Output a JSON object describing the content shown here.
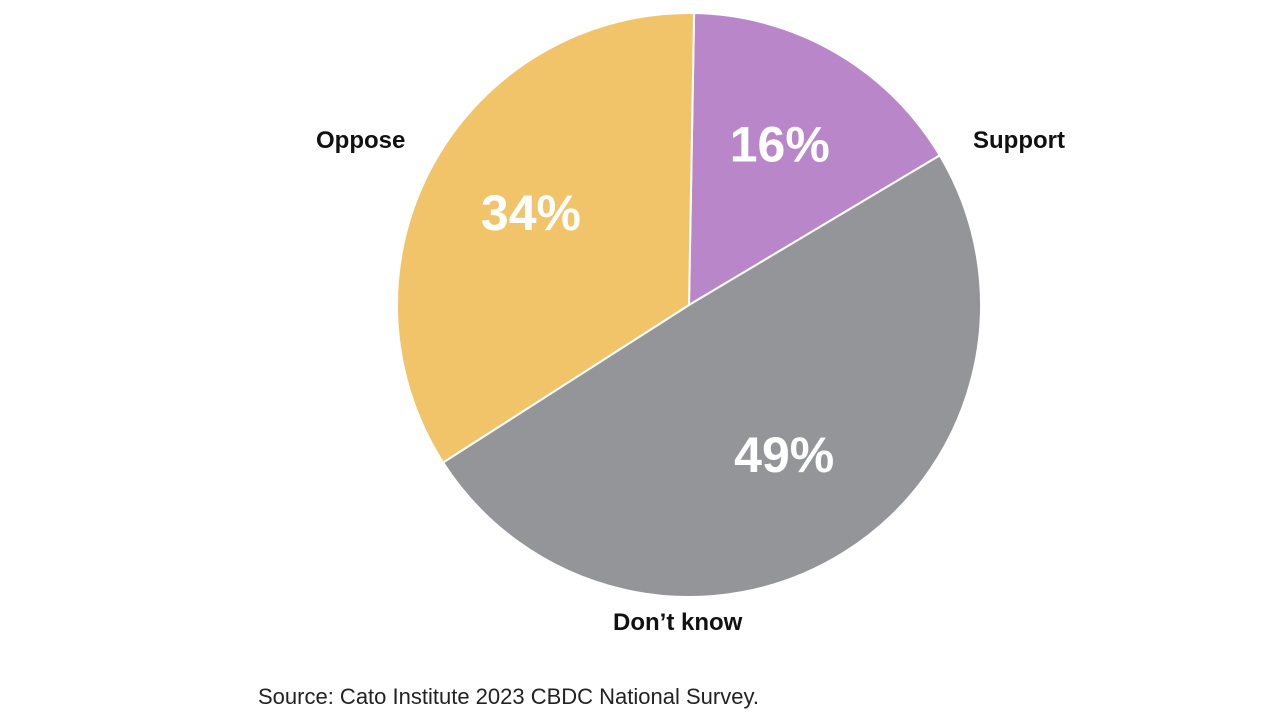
{
  "chart_data": {
    "type": "pie",
    "slices": [
      {
        "label": "Support",
        "value": 16,
        "value_label": "16%",
        "color": "#b987c9"
      },
      {
        "label": "Don’t know",
        "value": 49,
        "value_label": "49%",
        "color": "#939598"
      },
      {
        "label": "Oppose",
        "value": 34,
        "value_label": "34%",
        "color": "#f2c46a"
      }
    ],
    "legend": "none",
    "source": "Source: Cato Institute 2023 CBDC National Survey."
  }
}
